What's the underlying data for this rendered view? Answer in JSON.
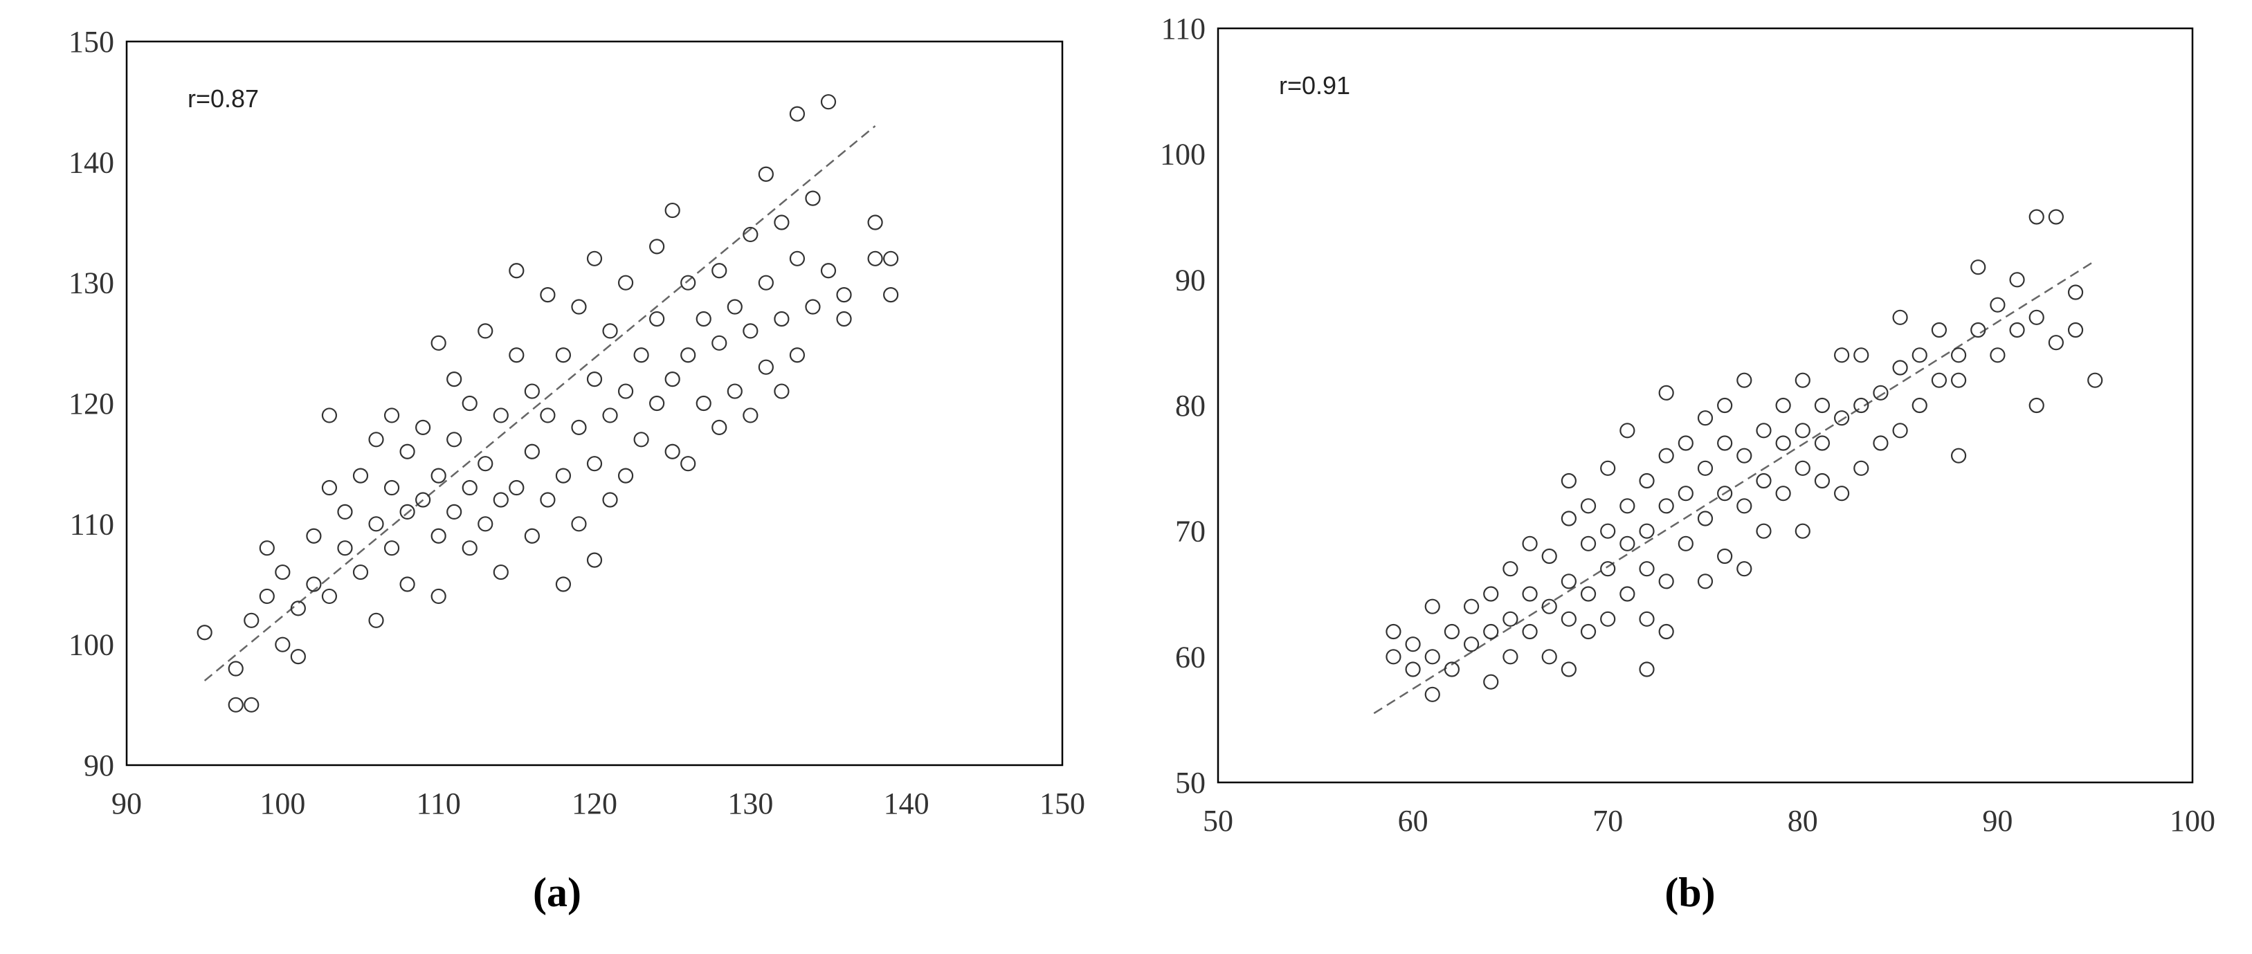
{
  "chart_data": [
    {
      "type": "scatter",
      "label": "(a)",
      "annotation": "r=0.87",
      "marker_color": "#333333",
      "trend_color": "#666666",
      "xlim": [
        90,
        150
      ],
      "ylim": [
        90,
        150
      ],
      "xticks": [
        90,
        100,
        110,
        120,
        130,
        140,
        150
      ],
      "yticks": [
        90,
        100,
        110,
        120,
        130,
        140,
        150
      ],
      "trend_x": [
        95,
        138
      ],
      "trend_y": [
        97,
        143
      ],
      "x": [
        95,
        97,
        98,
        97,
        98,
        99,
        99,
        100,
        100,
        101,
        101,
        102,
        102,
        103,
        103,
        103,
        104,
        104,
        105,
        105,
        106,
        106,
        106,
        107,
        107,
        107,
        108,
        108,
        108,
        109,
        109,
        110,
        110,
        110,
        110,
        111,
        111,
        111,
        112,
        112,
        112,
        113,
        113,
        113,
        114,
        114,
        114,
        115,
        115,
        115,
        116,
        116,
        116,
        117,
        117,
        117,
        118,
        118,
        118,
        119,
        119,
        119,
        120,
        120,
        120,
        120,
        121,
        121,
        121,
        122,
        122,
        122,
        123,
        123,
        124,
        124,
        124,
        125,
        125,
        125,
        126,
        126,
        126,
        127,
        127,
        128,
        128,
        128,
        129,
        129,
        130,
        130,
        130,
        131,
        131,
        131,
        132,
        132,
        132,
        133,
        133,
        133,
        134,
        134,
        135,
        135,
        136,
        136,
        138,
        138,
        139,
        139
      ],
      "values": [
        101,
        95,
        95,
        98,
        102,
        108,
        104,
        100,
        106,
        103,
        99,
        105,
        109,
        104,
        113,
        119,
        108,
        111,
        106,
        114,
        110,
        117,
        102,
        108,
        113,
        119,
        111,
        116,
        105,
        112,
        118,
        109,
        114,
        125,
        104,
        111,
        117,
        122,
        108,
        113,
        120,
        110,
        115,
        126,
        112,
        119,
        106,
        113,
        124,
        131,
        109,
        116,
        121,
        112,
        119,
        129,
        105,
        114,
        124,
        110,
        118,
        128,
        107,
        115,
        122,
        132,
        112,
        119,
        126,
        114,
        121,
        130,
        117,
        124,
        120,
        127,
        133,
        116,
        122,
        136,
        115,
        124,
        130,
        120,
        127,
        118,
        125,
        131,
        121,
        128,
        119,
        126,
        134,
        123,
        130,
        139,
        121,
        127,
        135,
        124,
        132,
        144,
        128,
        137,
        145,
        131,
        127,
        129,
        135,
        132,
        129,
        132
      ]
    },
    {
      "type": "scatter",
      "label": "(b)",
      "annotation": "r=0.91",
      "marker_color": "#333333",
      "trend_color": "#666666",
      "xlim": [
        50,
        100
      ],
      "ylim": [
        50,
        110
      ],
      "xticks": [
        50,
        60,
        70,
        80,
        90,
        100
      ],
      "yticks": [
        50,
        60,
        70,
        80,
        90,
        100,
        110
      ],
      "trend_x": [
        58,
        95
      ],
      "trend_y": [
        55.5,
        91.5
      ],
      "x": [
        59,
        59,
        60,
        60,
        61,
        61,
        61,
        62,
        62,
        63,
        63,
        64,
        64,
        64,
        65,
        65,
        65,
        66,
        66,
        66,
        67,
        67,
        67,
        68,
        68,
        68,
        68,
        68,
        69,
        69,
        69,
        69,
        70,
        70,
        70,
        70,
        71,
        71,
        71,
        71,
        72,
        72,
        72,
        72,
        72,
        73,
        73,
        73,
        73,
        73,
        74,
        74,
        74,
        75,
        75,
        75,
        75,
        76,
        76,
        76,
        76,
        77,
        77,
        77,
        77,
        78,
        78,
        78,
        79,
        79,
        79,
        80,
        80,
        80,
        80,
        81,
        81,
        81,
        82,
        82,
        82,
        83,
        83,
        83,
        84,
        84,
        85,
        85,
        85,
        86,
        86,
        87,
        87,
        88,
        88,
        88,
        89,
        89,
        90,
        90,
        91,
        91,
        92,
        92,
        92,
        93,
        93,
        94,
        94,
        95
      ],
      "values": [
        62,
        60,
        61,
        59,
        64,
        60,
        57,
        62,
        59,
        64,
        61,
        58,
        62,
        65,
        60,
        63,
        67,
        62,
        65,
        69,
        60,
        64,
        68,
        59,
        63,
        66,
        71,
        74,
        62,
        65,
        69,
        72,
        63,
        67,
        70,
        75,
        65,
        69,
        72,
        78,
        59,
        63,
        67,
        70,
        74,
        62,
        66,
        72,
        76,
        81,
        69,
        73,
        77,
        66,
        71,
        75,
        79,
        68,
        73,
        77,
        80,
        67,
        72,
        76,
        82,
        70,
        74,
        78,
        73,
        77,
        80,
        75,
        78,
        82,
        70,
        74,
        77,
        80,
        73,
        79,
        84,
        75,
        80,
        84,
        77,
        81,
        78,
        83,
        87,
        80,
        84,
        82,
        86,
        76,
        84,
        82,
        86,
        91,
        84,
        88,
        86,
        90,
        80,
        87,
        95,
        85,
        95,
        86,
        89,
        82
      ]
    }
  ]
}
